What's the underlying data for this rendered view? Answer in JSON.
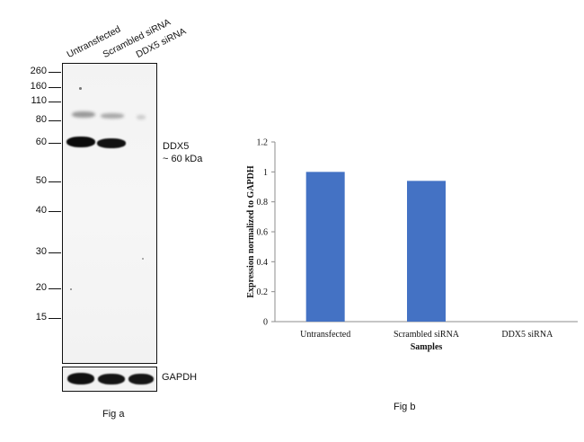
{
  "blot": {
    "lanes": [
      "Untransfected",
      "Scrambled siRNA",
      "DDX5 siRNA"
    ],
    "markers": [
      "260",
      "160",
      "110",
      "80",
      "60",
      "50",
      "40",
      "30",
      "20",
      "15"
    ],
    "target_label_line1": "DDX5",
    "target_label_line2": "~ 60 kDa",
    "loading_control": "GAPDH",
    "caption": "Fig a"
  },
  "chart_data": {
    "type": "bar",
    "categories": [
      "Untransfected",
      "Scrambled siRNA",
      "DDX5 siRNA"
    ],
    "values": [
      1.0,
      0.94,
      0.0
    ],
    "xlabel": "Samples",
    "ylabel": "Expression normalized to GAPDH",
    "ylim": [
      0,
      1.2
    ],
    "yticks": [
      "0",
      "0.2",
      "0.4",
      "0.6",
      "0.8",
      "1",
      "1.2"
    ],
    "bar_color": "#4472C4",
    "grid": false,
    "caption": "Fig b"
  }
}
